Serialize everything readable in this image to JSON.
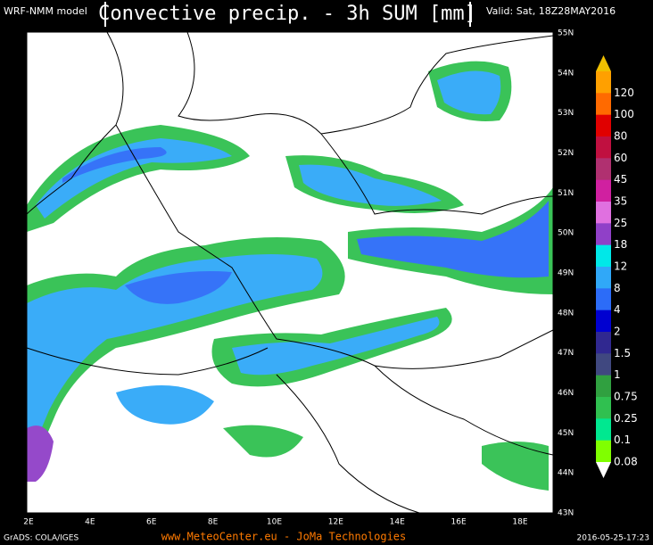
{
  "header": {
    "model": "WRF-NMM model",
    "title": "Convective precip. - 3h SUM [mm]",
    "valid": "Valid: Sat, 18Z28MAY2016"
  },
  "map": {
    "lat_labels": [
      "55N",
      "54N",
      "53N",
      "52N",
      "51N",
      "50N",
      "49N",
      "48N",
      "47N",
      "46N",
      "45N",
      "44N",
      "43N"
    ],
    "lon_labels": [
      "2E",
      "4E",
      "6E",
      "8E",
      "10E",
      "12E",
      "14E",
      "16E",
      "18E"
    ]
  },
  "legend": {
    "top_color": "#f0c000",
    "bottom_color": "#ffffff",
    "items": [
      {
        "label": "120",
        "color": "#ffa000"
      },
      {
        "label": "100",
        "color": "#ff6a00"
      },
      {
        "label": "80",
        "color": "#e00000"
      },
      {
        "label": "60",
        "color": "#c01040"
      },
      {
        "label": "45",
        "color": "#b03070"
      },
      {
        "label": "35",
        "color": "#d020a0"
      },
      {
        "label": "25",
        "color": "#e070e0"
      },
      {
        "label": "18",
        "color": "#9040c8"
      },
      {
        "label": "12",
        "color": "#00e8e8"
      },
      {
        "label": "8",
        "color": "#30a8f8"
      },
      {
        "label": "4",
        "color": "#2c6cf8"
      },
      {
        "label": "2",
        "color": "#0000d0"
      },
      {
        "label": "1.5",
        "color": "#302890"
      },
      {
        "label": "1",
        "color": "#404880"
      },
      {
        "label": "0.75",
        "color": "#30a040"
      },
      {
        "label": "0.25",
        "color": "#30c050"
      },
      {
        "label": "0.1",
        "color": "#00e890"
      },
      {
        "label": "0.08",
        "color": "#80ff00"
      }
    ]
  },
  "footer": {
    "left": "GrADS: COLA/IGES",
    "center": "www.MeteoCenter.eu  -  JoMa Technologies",
    "right": "2016-05-25-17:23"
  }
}
